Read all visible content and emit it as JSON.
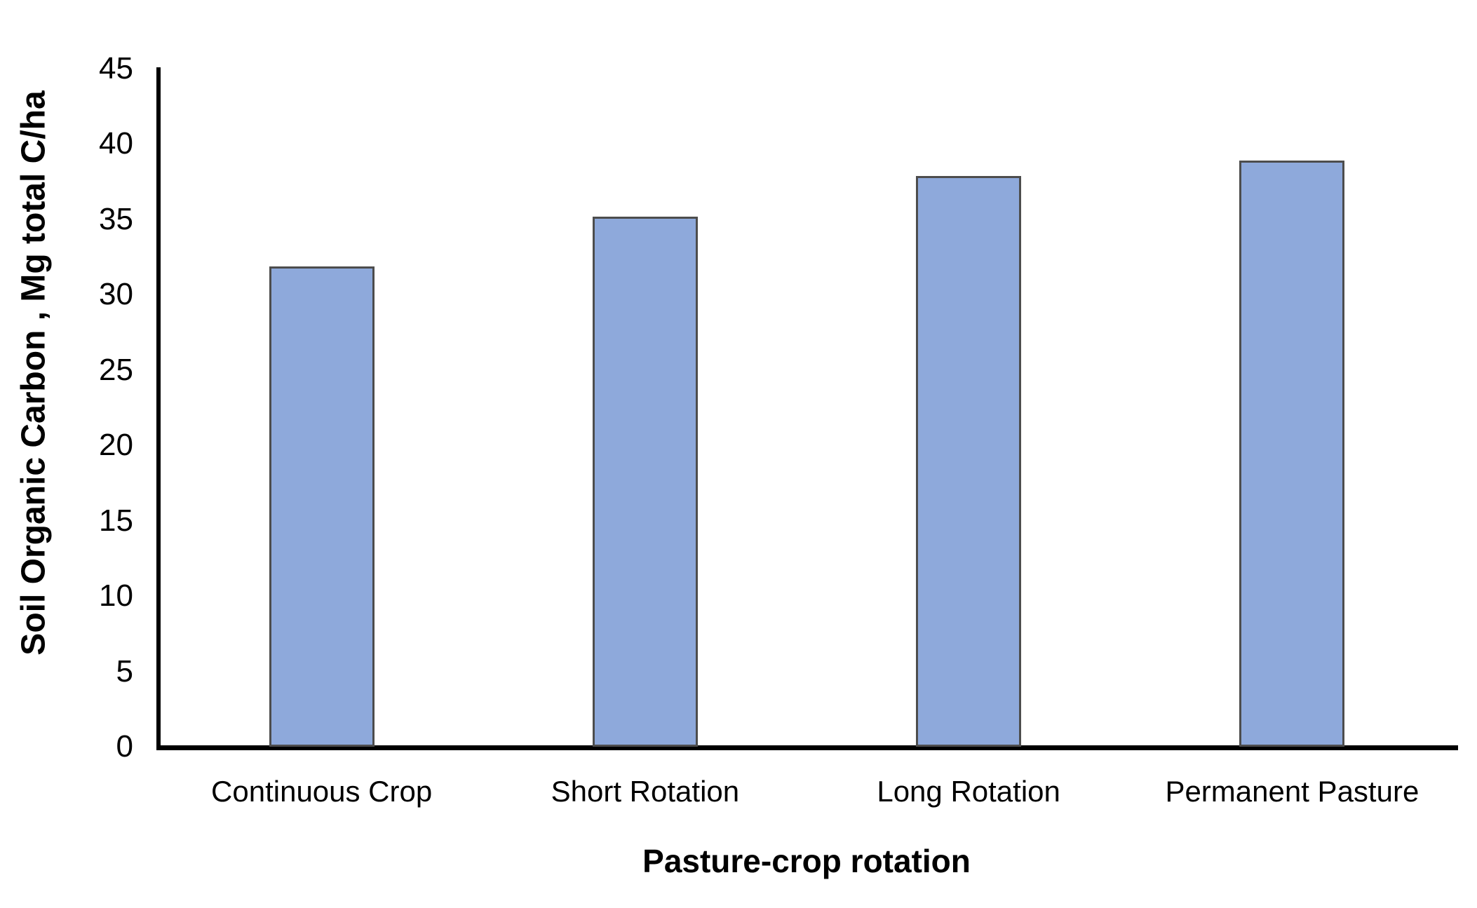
{
  "chart_data": {
    "type": "bar",
    "title": "",
    "categories": [
      "Continuous Crop",
      "Short Rotation",
      "Long Rotation",
      "Permanent Pasture"
    ],
    "values": [
      31.9,
      35.2,
      37.9,
      38.9
    ],
    "xlabel": "Pasture-crop rotation",
    "ylabel": "Soil Organic Carbon , Mg total C/ha",
    "ylim": [
      0,
      45
    ],
    "yticks": [
      0,
      5,
      10,
      15,
      20,
      25,
      30,
      35,
      40,
      45
    ],
    "grid": false,
    "legend": false,
    "colors": {
      "bar_fill": "#8EA9DB",
      "bar_border": "#4D4D4D",
      "axis_line": "#000000",
      "text": "#000000",
      "background": "#FFFFFF"
    }
  }
}
